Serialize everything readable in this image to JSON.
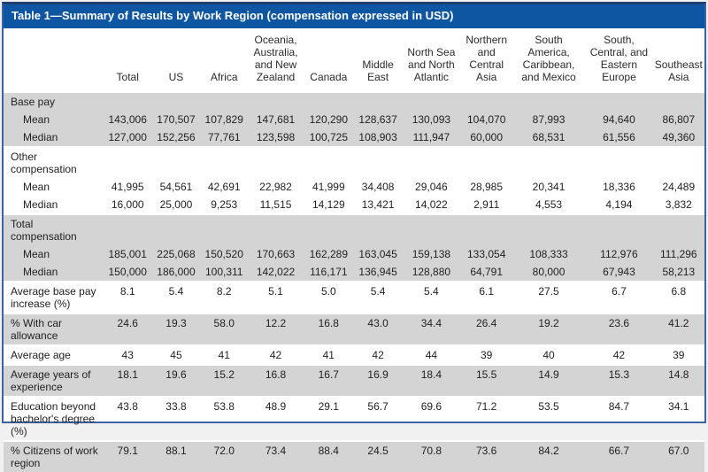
{
  "title_bar": {
    "title": "Table 1—Summary of Results by Work Region (compensation expressed in USD)"
  },
  "colors": {
    "header_blue": "#0F56A2",
    "border_blue": "#3A62A5",
    "border_dark": "#1E3F70",
    "row_shade": "#D4D4D4",
    "text": "#1F1F1F"
  },
  "table": {
    "columns": [
      "",
      "Total",
      "US",
      "Africa",
      "Oceania, Australia, and New Zealand",
      "Canada",
      "Middle East",
      "North Sea and North Atlantic",
      "Northern and Central Asia",
      "South America, Caribbean, and Mexico",
      "South, Central, and Eastern Europe",
      "Southeast Asia"
    ],
    "rows": [
      {
        "label": "Base pay",
        "section": true,
        "shaded": true,
        "sep": true,
        "values": []
      },
      {
        "label": "Mean",
        "indent": true,
        "shaded": true,
        "values": [
          "143,006",
          "170,507",
          "107,829",
          "147,681",
          "120,290",
          "128,637",
          "130,093",
          "104,070",
          "87,993",
          "94,640",
          "86,807"
        ]
      },
      {
        "label": "Median",
        "indent": true,
        "shaded": true,
        "values": [
          "127,000",
          "152,256",
          "77,761",
          "123,598",
          "100,725",
          "108,903",
          "111,947",
          "60,000",
          "68,531",
          "61,556",
          "49,360"
        ]
      },
      {
        "label": "Other compensation",
        "section": true,
        "shaded": false,
        "sep": true,
        "values": []
      },
      {
        "label": "Mean",
        "indent": true,
        "shaded": false,
        "values": [
          "41,995",
          "54,561",
          "42,691",
          "22,982",
          "41,999",
          "34,408",
          "29,046",
          "28,985",
          "20,341",
          "18,336",
          "24,489"
        ]
      },
      {
        "label": "Median",
        "indent": true,
        "shaded": false,
        "values": [
          "16,000",
          "25,000",
          "9,253",
          "11,515",
          "14,129",
          "13,421",
          "14,022",
          "2,911",
          "4,553",
          "4,194",
          "3,832"
        ]
      },
      {
        "label": "Total compensation",
        "section": true,
        "shaded": true,
        "sep": true,
        "values": []
      },
      {
        "label": "Mean",
        "indent": true,
        "shaded": true,
        "values": [
          "185,001",
          "225,068",
          "150,520",
          "170,663",
          "162,289",
          "163,045",
          "159,138",
          "133,054",
          "108,333",
          "112,976",
          "111,296"
        ]
      },
      {
        "label": "Median",
        "indent": true,
        "shaded": true,
        "values": [
          "150,000",
          "186,000",
          "100,311",
          "142,022",
          "116,171",
          "136,945",
          "128,880",
          "64,791",
          "80,000",
          "67,943",
          "58,213"
        ]
      },
      {
        "label": "Average base pay increase (%)",
        "shaded": false,
        "sep": true,
        "values": [
          "8.1",
          "5.4",
          "8.2",
          "5.1",
          "5.0",
          "5.4",
          "5.4",
          "6.1",
          "27.5",
          "6.7",
          "6.8"
        ]
      },
      {
        "label": "% With car allowance",
        "shaded": true,
        "sep": true,
        "values": [
          "24.6",
          "19.3",
          "58.0",
          "12.2",
          "16.8",
          "43.0",
          "34.4",
          "26.4",
          "19.2",
          "23.6",
          "41.2"
        ]
      },
      {
        "label": "Average age",
        "shaded": false,
        "sep": true,
        "values": [
          "43",
          "45",
          "41",
          "42",
          "41",
          "42",
          "44",
          "39",
          "40",
          "42",
          "39"
        ]
      },
      {
        "label": "Average years of experience",
        "shaded": true,
        "sep": true,
        "values": [
          "18.1",
          "19.6",
          "15.2",
          "16.8",
          "16.7",
          "16.9",
          "18.4",
          "15.5",
          "14.9",
          "15.3",
          "14.8"
        ]
      },
      {
        "label": "Education beyond bachelor's degree (%)",
        "shaded": false,
        "sep": true,
        "values": [
          "43.8",
          "33.8",
          "53.8",
          "48.9",
          "29.1",
          "56.7",
          "69.6",
          "71.2",
          "53.5",
          "84.7",
          "34.1"
        ]
      },
      {
        "label": "% Citizens of work region",
        "shaded": true,
        "sep": true,
        "values": [
          "79.1",
          "88.1",
          "72.0",
          "73.4",
          "88.4",
          "24.5",
          "70.8",
          "73.6",
          "84.2",
          "66.7",
          "67.0"
        ]
      }
    ]
  }
}
